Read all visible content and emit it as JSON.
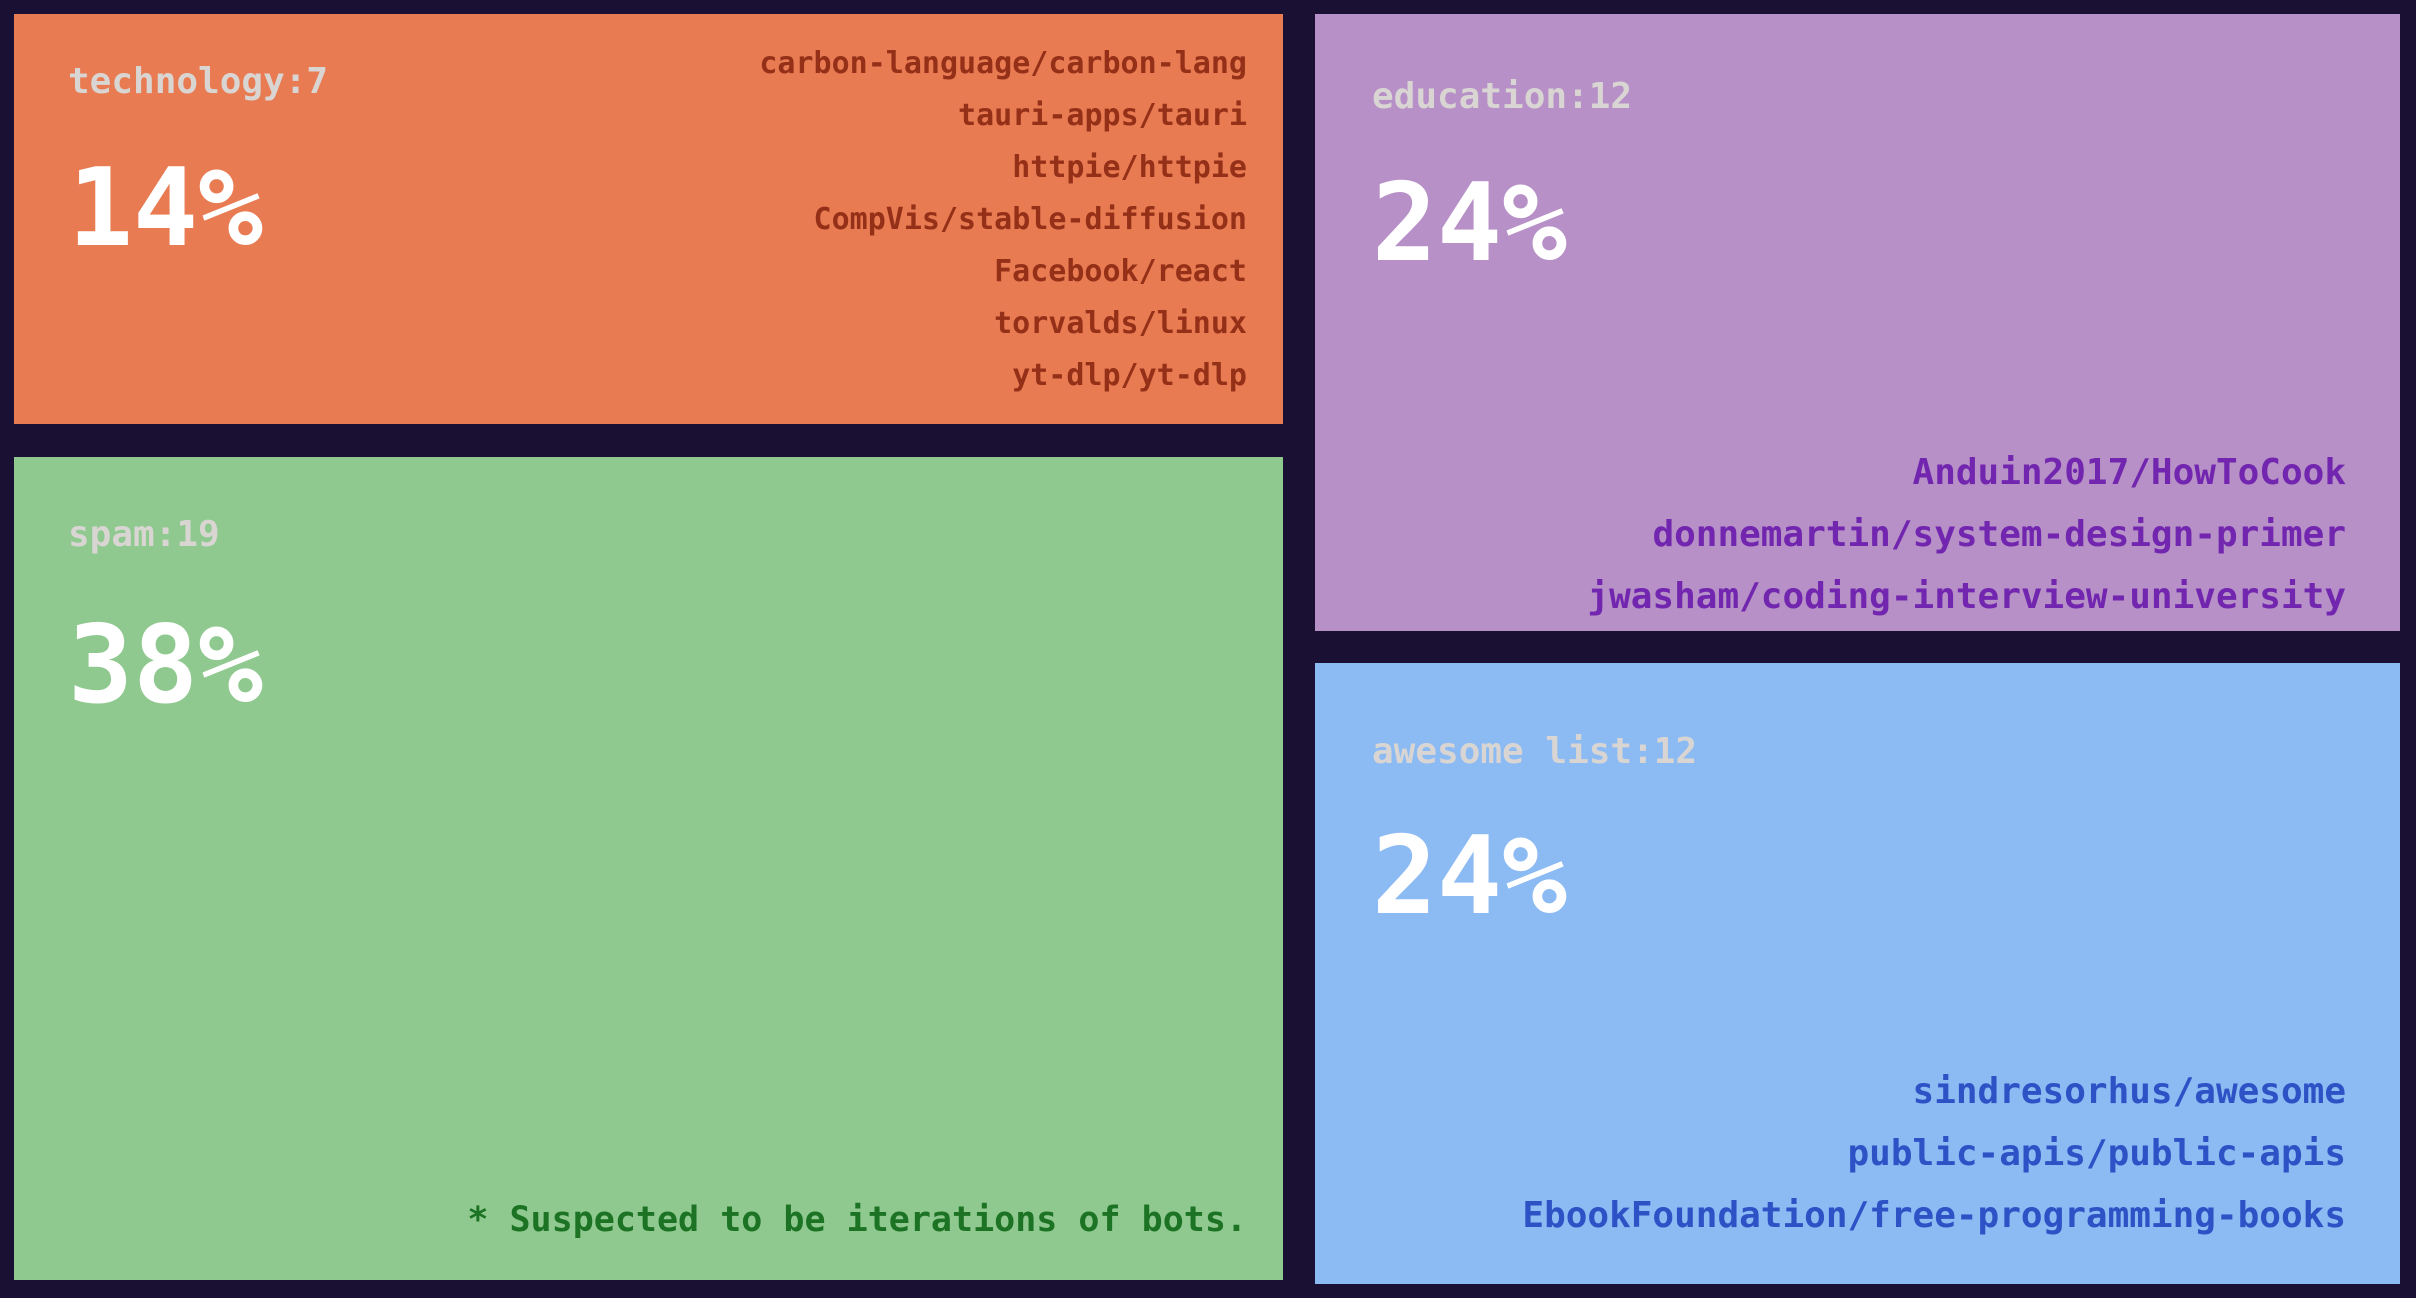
{
  "page": {
    "background_color": "#1A1033",
    "label_text_color": "#D9D5D3",
    "percent_text_color": "#FFFFFF"
  },
  "chart_data": {
    "type": "pie",
    "variant": "treemap",
    "title": "",
    "categories": [
      "technology",
      "spam",
      "education",
      "awesome list"
    ],
    "values": [
      7,
      19,
      12,
      12
    ],
    "percentages": [
      14,
      38,
      24,
      24
    ],
    "legend_position": "none",
    "annotations": [
      "* Suspected to be iterations of bots."
    ],
    "items_by_category": {
      "technology": [
        "carbon-language/carbon-lang",
        "tauri-apps/tauri",
        "httpie/httpie",
        "CompVis/stable-diffusion",
        "Facebook/react",
        "torvalds/linux",
        "yt-dlp/yt-dlp"
      ],
      "spam": [],
      "education": [
        "Anduin2017/HowToCook",
        "donnemartin/system-design-primer",
        "jwasham/coding-interview-university"
      ],
      "awesome list": [
        "sindresorhus/awesome",
        "public-apis/public-apis",
        "EbookFoundation/free-programming-books"
      ]
    }
  },
  "cells": [
    {
      "category": "technology",
      "label": "technology:7",
      "percent": "14%",
      "bg_color": "#E87B52",
      "repo_text_color": "#953018",
      "repos": [
        "carbon-language/carbon-lang",
        "tauri-apps/tauri",
        "httpie/httpie",
        "CompVis/stable-diffusion",
        "Facebook/react",
        "torvalds/linux",
        "yt-dlp/yt-dlp"
      ]
    },
    {
      "category": "spam",
      "label": "spam:19",
      "percent": "38%",
      "bg_color": "#8FC98F",
      "note_color": "#1C7324",
      "note": "* Suspected to be iterations of bots."
    },
    {
      "category": "education",
      "label": "education:12",
      "percent": "24%",
      "bg_color": "#B690C6",
      "repo_text_color": "#7226AF",
      "repos": [
        "Anduin2017/HowToCook",
        "donnemartin/system-design-primer",
        "jwasham/coding-interview-university"
      ]
    },
    {
      "category": "awesome list",
      "label": "awesome list:12",
      "percent": "24%",
      "bg_color": "#8CBAF3",
      "repo_text_color": "#2C52C6",
      "repos": [
        "sindresorhus/awesome",
        "public-apis/public-apis",
        "EbookFoundation/free-programming-books"
      ]
    }
  ]
}
